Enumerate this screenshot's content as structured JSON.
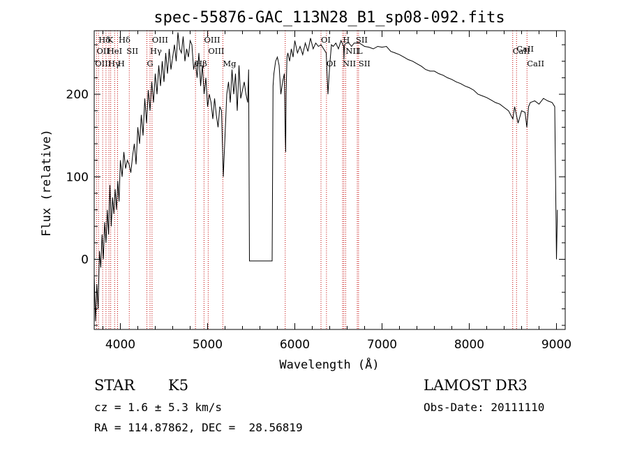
{
  "chart_data": {
    "type": "line",
    "title": "spec-55876-GAC_113N28_B1_sp08-092.fits",
    "xlabel": "Wavelength (Å)",
    "ylabel": "Flux (relative)",
    "xlim": [
      3700,
      9100
    ],
    "ylim": [
      -85,
      277
    ],
    "xticks": [
      4000,
      5000,
      6000,
      7000,
      8000,
      9000
    ],
    "yticks": [
      0,
      100,
      200
    ],
    "series": [
      {
        "name": "spectrum",
        "x": [
          3700,
          3715,
          3730,
          3745,
          3760,
          3775,
          3790,
          3805,
          3820,
          3835,
          3850,
          3865,
          3880,
          3895,
          3910,
          3925,
          3940,
          3955,
          3970,
          3985,
          4000,
          4020,
          4040,
          4060,
          4080,
          4100,
          4120,
          4140,
          4160,
          4180,
          4200,
          4220,
          4240,
          4260,
          4280,
          4300,
          4320,
          4340,
          4360,
          4380,
          4400,
          4420,
          4440,
          4460,
          4480,
          4500,
          4520,
          4540,
          4560,
          4580,
          4600,
          4620,
          4640,
          4660,
          4680,
          4700,
          4720,
          4740,
          4760,
          4780,
          4800,
          4820,
          4840,
          4860,
          4880,
          4900,
          4920,
          4940,
          4960,
          4980,
          5000,
          5020,
          5040,
          5060,
          5080,
          5100,
          5120,
          5140,
          5160,
          5180,
          5200,
          5220,
          5240,
          5260,
          5280,
          5300,
          5320,
          5340,
          5360,
          5380,
          5400,
          5420,
          5440,
          5460,
          5470,
          5480,
          5500,
          5600,
          5700,
          5740,
          5750,
          5760,
          5780,
          5800,
          5820,
          5840,
          5860,
          5880,
          5890,
          5895,
          5900,
          5910,
          5920,
          5940,
          5960,
          5980,
          6000,
          6030,
          6060,
          6090,
          6120,
          6150,
          6180,
          6210,
          6240,
          6270,
          6300,
          6330,
          6360,
          6380,
          6400,
          6420,
          6440,
          6470,
          6500,
          6530,
          6560,
          6563,
          6570,
          6590,
          6620,
          6650,
          6680,
          6710,
          6740,
          6770,
          6800,
          6850,
          6900,
          6950,
          7000,
          7050,
          7100,
          7150,
          7200,
          7250,
          7300,
          7350,
          7400,
          7450,
          7500,
          7550,
          7600,
          7650,
          7700,
          7750,
          7800,
          7850,
          7900,
          7950,
          8000,
          8050,
          8100,
          8150,
          8200,
          8250,
          8300,
          8350,
          8400,
          8450,
          8500,
          8520,
          8540,
          8560,
          8600,
          8640,
          8660,
          8680,
          8700,
          8750,
          8800,
          8850,
          8900,
          8950,
          8980,
          9000,
          9010
        ],
        "y": [
          -20,
          -75,
          -30,
          -60,
          10,
          -10,
          30,
          0,
          45,
          20,
          60,
          30,
          90,
          40,
          75,
          55,
          85,
          60,
          95,
          70,
          120,
          100,
          130,
          110,
          120,
          115,
          105,
          125,
          140,
          115,
          160,
          140,
          175,
          150,
          195,
          165,
          205,
          180,
          215,
          190,
          225,
          200,
          235,
          210,
          240,
          215,
          250,
          225,
          255,
          230,
          245,
          260,
          240,
          275,
          255,
          250,
          270,
          240,
          255,
          245,
          265,
          260,
          230,
          240,
          220,
          250,
          210,
          235,
          200,
          220,
          185,
          200,
          190,
          170,
          195,
          175,
          160,
          185,
          180,
          100,
          150,
          200,
          215,
          190,
          230,
          200,
          225,
          180,
          235,
          195,
          205,
          215,
          200,
          190,
          230,
          -2,
          -2,
          -2,
          -2,
          -2,
          210,
          225,
          240,
          245,
          235,
          200,
          215,
          225,
          150,
          130,
          200,
          245,
          250,
          240,
          255,
          245,
          265,
          250,
          258,
          248,
          262,
          252,
          268,
          255,
          262,
          258,
          260,
          255,
          250,
          200,
          235,
          260,
          258,
          262,
          255,
          265,
          258,
          242,
          260,
          262,
          262,
          258,
          262,
          262,
          262,
          260,
          258,
          257,
          255,
          258,
          257,
          258,
          252,
          250,
          248,
          245,
          242,
          240,
          237,
          234,
          230,
          228,
          228,
          225,
          223,
          220,
          218,
          215,
          213,
          210,
          208,
          205,
          200,
          198,
          196,
          193,
          190,
          188,
          184,
          180,
          170,
          185,
          175,
          165,
          180,
          178,
          160,
          185,
          190,
          192,
          188,
          195,
          192,
          190,
          185,
          0,
          60
        ]
      }
    ],
    "line_labels": [
      {
        "text": "Hδ",
        "x": 3750,
        "row": 1
      },
      {
        "text": "K",
        "x": 3850,
        "row": 1
      },
      {
        "text": "Hδ",
        "x": 3980,
        "row": 1
      },
      {
        "text": "OIII",
        "x": 4363,
        "row": 1
      },
      {
        "text": "OIII",
        "x": 4960,
        "row": 1
      },
      {
        "text": "OI",
        "x": 6300,
        "row": 1
      },
      {
        "text": "H",
        "x": 6550,
        "row": 1
      },
      {
        "text": "SII",
        "x": 6700,
        "row": 1
      },
      {
        "text": "OII",
        "x": 3727,
        "row": 2
      },
      {
        "text": "HeI",
        "x": 3850,
        "row": 2
      },
      {
        "text": "SII",
        "x": 4070,
        "row": 2
      },
      {
        "text": "Hγ",
        "x": 4340,
        "row": 2
      },
      {
        "text": "OIII",
        "x": 5007,
        "row": 2
      },
      {
        "text": "NII",
        "x": 6583,
        "row": 2
      },
      {
        "text": "L",
        "x": 6716,
        "row": 2
      },
      {
        "text": "CaII",
        "x": 8498,
        "row": 2
      },
      {
        "text": "OIII",
        "x": 3710,
        "row": 3
      },
      {
        "text": "Hγ",
        "x": 3860,
        "row": 3
      },
      {
        "text": "H",
        "x": 3970,
        "row": 3
      },
      {
        "text": "G",
        "x": 4304,
        "row": 3
      },
      {
        "text": "Hβ",
        "x": 4861,
        "row": 3
      },
      {
        "text": "Mg",
        "x": 5175,
        "row": 3
      },
      {
        "text": "OI",
        "x": 6363,
        "row": 3
      },
      {
        "text": "NII",
        "x": 6548,
        "row": 3
      },
      {
        "text": "SII",
        "x": 6731,
        "row": 3
      },
      {
        "text": "CaII",
        "x": 8662,
        "row": 3
      },
      {
        "text": "CaII",
        "x": 8542,
        "row": 0
      }
    ],
    "marker_lines": [
      3727,
      3750,
      3797,
      3835,
      3869,
      3889,
      3934,
      3968,
      4102,
      4304,
      4340,
      4363,
      4861,
      4959,
      5007,
      5175,
      5890,
      6300,
      6363,
      6548,
      6563,
      6583,
      6716,
      6731,
      8498,
      8542,
      8662
    ]
  },
  "info": {
    "object": "STAR",
    "subclass": "K5",
    "survey": "LAMOST DR3",
    "cz": "cz = 1.6 ± 5.3 km/s",
    "obsdate": "Obs-Date: 20111110",
    "coords": "RA = 114.87862, DEC =  28.56819"
  }
}
